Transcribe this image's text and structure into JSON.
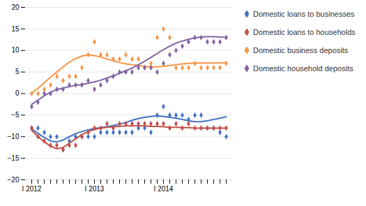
{
  "chart_data": {
    "type": "line",
    "categories": [
      "I 2012",
      null,
      null,
      null,
      null,
      null,
      null,
      null,
      null,
      null,
      "I 2013",
      null,
      null,
      null,
      null,
      null,
      null,
      null,
      null,
      null,
      null,
      "I 2014",
      null,
      null,
      null,
      null,
      null,
      null,
      null,
      null,
      null,
      null
    ],
    "ylim": [
      -20,
      20
    ],
    "yticks": [
      -20,
      -15,
      -10,
      -5,
      0,
      5,
      10,
      15,
      20
    ],
    "grid": true,
    "legend": "right",
    "series": [
      {
        "name": "Domestic loans to businesses",
        "color": "#4472c4",
        "marker": "diamond",
        "points": [
          -8,
          -8,
          -9,
          -10,
          -10,
          -13,
          -11,
          -10,
          -10,
          -10,
          -10,
          -9,
          -9,
          -9,
          -9,
          -9,
          -9,
          -8,
          -8,
          -9,
          -5,
          -3,
          -5,
          -5,
          -5,
          -6,
          -5,
          -5,
          -8,
          -8,
          -9,
          -10
        ],
        "values": [
          -8.2,
          -9.2,
          -10.2,
          -11.0,
          -11.2,
          -10.8,
          -10.0,
          -9.3,
          -8.8,
          -8.4,
          -8.1,
          -7.9,
          -7.7,
          -7.4,
          -7.1,
          -6.7,
          -6.2,
          -5.8,
          -5.5,
          -5.3,
          -5.2,
          -5.3,
          -5.5,
          -5.7,
          -6.0,
          -6.3,
          -6.5,
          -6.5,
          -6.3,
          -6.0,
          -5.7,
          -5.4
        ]
      },
      {
        "name": "Domestic loans to households",
        "color": "#c0504d",
        "marker": "diamond",
        "points": [
          -8,
          -10,
          -11,
          -12,
          -12,
          -13,
          -12,
          -12,
          -10,
          -9,
          -8,
          -8,
          -7,
          -8,
          -7,
          -7,
          -7,
          -7,
          -7,
          -7,
          -7,
          -7,
          -8,
          -7,
          -8,
          -7,
          -8,
          -8,
          -8,
          -8,
          -8,
          -8
        ],
        "values": [
          -8.5,
          -10.0,
          -11.2,
          -12.2,
          -12.8,
          -12.5,
          -11.5,
          -10.5,
          -9.5,
          -8.8,
          -8.3,
          -8.0,
          -7.8,
          -7.7,
          -7.6,
          -7.5,
          -7.5,
          -7.5,
          -7.5,
          -7.6,
          -7.6,
          -7.7,
          -7.8,
          -7.8,
          -7.9,
          -7.9,
          -8.0,
          -8.0,
          -8.0,
          -8.0,
          -8.0,
          -8.0
        ]
      },
      {
        "name": "Domestic business deposits",
        "color": "#f79646",
        "marker": "diamond",
        "points": [
          0,
          0,
          1,
          2,
          4,
          3,
          4,
          4,
          6,
          9,
          12,
          9,
          9,
          8,
          8,
          9,
          8,
          8,
          6,
          7,
          13,
          15,
          13,
          6,
          6,
          6,
          7,
          6,
          6,
          6,
          6,
          7
        ],
        "values": [
          0.2,
          1.2,
          2.5,
          3.8,
          5.0,
          6.2,
          7.3,
          8.1,
          8.7,
          9.0,
          8.8,
          8.5,
          8.0,
          7.6,
          7.2,
          6.9,
          6.7,
          6.5,
          6.3,
          6.2,
          6.2,
          6.3,
          6.5,
          6.7,
          6.9,
          7.0,
          7.1,
          7.1,
          7.1,
          7.1,
          7.1,
          7.2
        ]
      },
      {
        "name": "Domestic household deposits",
        "color": "#8064a2",
        "marker": "diamond",
        "points": [
          -3,
          -2,
          0,
          0,
          1,
          1,
          2,
          2,
          2,
          3,
          1,
          2,
          3,
          4,
          5,
          5,
          5,
          6,
          6,
          6,
          5,
          7,
          9,
          10,
          11,
          12,
          13,
          13,
          12,
          12,
          12,
          13
        ],
        "values": [
          -2.5,
          -1.5,
          -0.5,
          0.3,
          0.9,
          1.3,
          1.6,
          1.9,
          2.1,
          2.4,
          2.7,
          3.1,
          3.6,
          4.1,
          4.7,
          5.3,
          5.9,
          6.7,
          7.5,
          8.4,
          9.3,
          10.2,
          11.0,
          11.7,
          12.2,
          12.6,
          12.9,
          13.1,
          13.2,
          13.2,
          13.1,
          13.0
        ]
      }
    ]
  }
}
